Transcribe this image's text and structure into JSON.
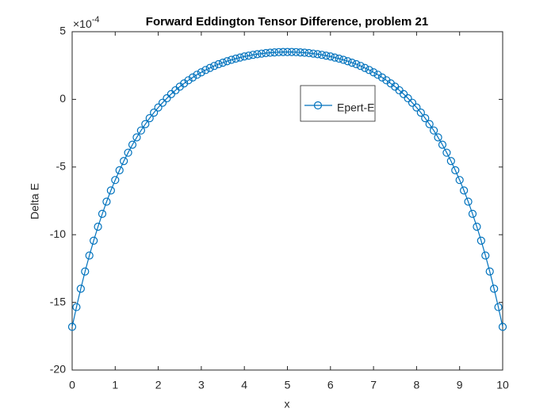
{
  "chart_data": {
    "type": "line",
    "title": "Forward Eddington Tensor Difference, problem 21",
    "xlabel": "x",
    "ylabel": "Delta E",
    "y_multiplier": {
      "base": "×10",
      "power": "-4"
    },
    "legend": "northeast",
    "marker": "circle",
    "xlim": [
      0,
      10
    ],
    "xticks": [
      0,
      1,
      2,
      3,
      4,
      5,
      6,
      7,
      8,
      9,
      10
    ],
    "ylim": [
      -20,
      5
    ],
    "yticks": [
      -20,
      -15,
      -10,
      -5,
      0,
      5
    ],
    "x": [
      0,
      0.1,
      0.2,
      0.3,
      0.4,
      0.5,
      0.6,
      0.7,
      0.8,
      0.9,
      1,
      1.1,
      1.2,
      1.3,
      1.4,
      1.5,
      1.6,
      1.7,
      1.8,
      1.9,
      2,
      2.1,
      2.2,
      2.3,
      2.4,
      2.5,
      2.6,
      2.7,
      2.8,
      2.9,
      3,
      3.1,
      3.2,
      3.3,
      3.4,
      3.5,
      3.6,
      3.7,
      3.8,
      3.9,
      4,
      4.1,
      4.2,
      4.3,
      4.4,
      4.5,
      4.6,
      4.7,
      4.8,
      4.9,
      5,
      5.1,
      5.2,
      5.3,
      5.4,
      5.5,
      5.6,
      5.7,
      5.8,
      5.9,
      6,
      6.1,
      6.2,
      6.3,
      6.4,
      6.5,
      6.6,
      6.7,
      6.8,
      6.9,
      7,
      7.1,
      7.2,
      7.3,
      7.4,
      7.5,
      7.6,
      7.7,
      7.8,
      7.9,
      8,
      8.1,
      8.2,
      8.3,
      8.4,
      8.5,
      8.6,
      8.7,
      8.8,
      8.9,
      9,
      9.1,
      9.2,
      9.3,
      9.4,
      9.5,
      9.6,
      9.7,
      9.8,
      9.9,
      10
    ],
    "series": [
      {
        "name": "Epert-E",
        "color": "#0072bd",
        "values": [
          -16.81,
          -15.35,
          -13.99,
          -12.72,
          -11.54,
          -10.44,
          -9.41,
          -8.46,
          -7.56,
          -6.73,
          -5.96,
          -5.24,
          -4.56,
          -3.94,
          -3.35,
          -2.81,
          -2.3,
          -1.83,
          -1.39,
          -0.98,
          -0.6,
          -0.25,
          0.08,
          0.39,
          0.67,
          0.94,
          1.18,
          1.41,
          1.62,
          1.82,
          2.0,
          2.17,
          2.32,
          2.47,
          2.6,
          2.71,
          2.82,
          2.92,
          3.01,
          3.09,
          3.17,
          3.23,
          3.29,
          3.34,
          3.38,
          3.42,
          3.45,
          3.47,
          3.49,
          3.5,
          3.5,
          3.5,
          3.49,
          3.47,
          3.45,
          3.42,
          3.38,
          3.34,
          3.29,
          3.23,
          3.17,
          3.09,
          3.01,
          2.92,
          2.82,
          2.71,
          2.6,
          2.47,
          2.32,
          2.17,
          2.0,
          1.82,
          1.62,
          1.41,
          1.18,
          0.94,
          0.67,
          0.39,
          0.08,
          -0.25,
          -0.6,
          -0.98,
          -1.39,
          -1.83,
          -2.3,
          -2.81,
          -3.35,
          -3.94,
          -4.56,
          -5.24,
          -5.96,
          -6.73,
          -7.56,
          -8.46,
          -9.41,
          -10.44,
          -11.54,
          -12.72,
          -13.99,
          -15.35,
          -16.81
        ]
      }
    ]
  }
}
